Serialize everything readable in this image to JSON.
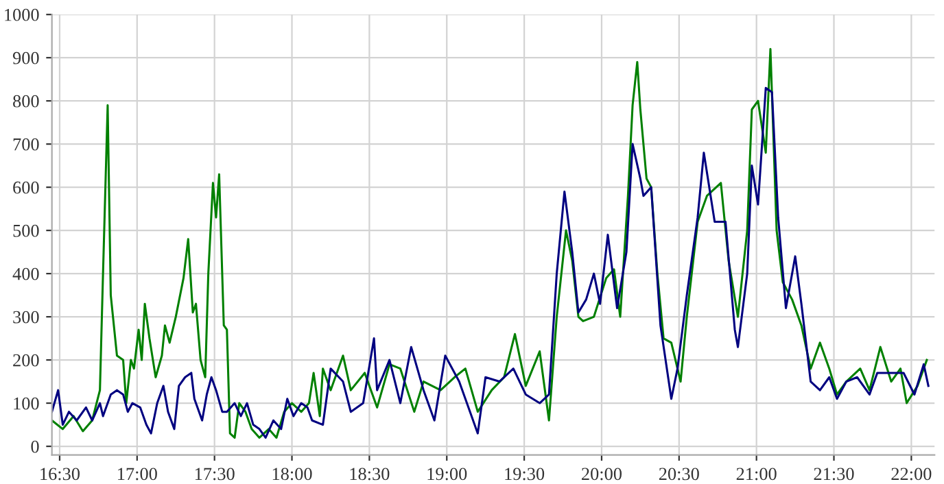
{
  "chart_data": {
    "type": "line",
    "xlim": [
      16.45,
      22.15
    ],
    "ylim": [
      -20,
      1000
    ],
    "xticks": [
      {
        "value": 16.5,
        "label": "16:30"
      },
      {
        "value": 17,
        "label": "17:00"
      },
      {
        "value": 17.5,
        "label": "17:30"
      },
      {
        "value": 18,
        "label": "18:00"
      },
      {
        "value": 18.5,
        "label": "18:30"
      },
      {
        "value": 19,
        "label": "19:00"
      },
      {
        "value": 19.5,
        "label": "19:30"
      },
      {
        "value": 20,
        "label": "20:00"
      },
      {
        "value": 20.5,
        "label": "20:30"
      },
      {
        "value": 21,
        "label": "21:00"
      },
      {
        "value": 21.5,
        "label": "21:30"
      },
      {
        "value": 22,
        "label": "22:00"
      }
    ],
    "yticks": [
      0,
      100,
      200,
      300,
      400,
      500,
      600,
      700,
      800,
      900,
      1000
    ],
    "grid": true,
    "marker": "none",
    "line_style": "solid",
    "series": [
      {
        "color": "#008000",
        "x": [
          16.45,
          16.52,
          16.59,
          16.65,
          16.71,
          16.76,
          16.78,
          16.81,
          16.83,
          16.87,
          16.91,
          16.93,
          16.96,
          16.98,
          17.01,
          17.03,
          17.05,
          17.08,
          17.12,
          17.16,
          17.18,
          17.21,
          17.25,
          17.3,
          17.33,
          17.36,
          17.38,
          17.41,
          17.44,
          17.46,
          17.49,
          17.51,
          17.53,
          17.56,
          17.58,
          17.6,
          17.63,
          17.66,
          17.7,
          17.74,
          17.79,
          17.85,
          17.9,
          17.95,
          18.0,
          18.06,
          18.11,
          18.14,
          18.18,
          18.2,
          18.25,
          18.33,
          18.38,
          18.47,
          18.55,
          18.63,
          18.7,
          18.79,
          18.85,
          18.96,
          19.05,
          19.12,
          19.2,
          19.29,
          19.37,
          19.44,
          19.51,
          19.6,
          19.66,
          19.71,
          19.77,
          19.81,
          19.85,
          19.88,
          19.95,
          20.03,
          20.08,
          20.12,
          20.17,
          20.2,
          20.23,
          20.25,
          20.29,
          20.32,
          20.36,
          20.4,
          20.45,
          20.51,
          20.55,
          20.62,
          20.68,
          20.77,
          20.82,
          20.88,
          20.94,
          20.97,
          21.01,
          21.06,
          21.09,
          21.13,
          21.17,
          21.23,
          21.29,
          21.35,
          21.41,
          21.47,
          21.52,
          21.58,
          21.67,
          21.73,
          21.8,
          21.87,
          21.93,
          21.97,
          22.04,
          22.1
        ],
        "values": [
          60,
          40,
          70,
          35,
          60,
          130,
          400,
          790,
          350,
          210,
          200,
          100,
          200,
          180,
          270,
          200,
          330,
          250,
          160,
          210,
          280,
          240,
          300,
          390,
          480,
          310,
          330,
          200,
          160,
          400,
          610,
          530,
          630,
          280,
          270,
          30,
          20,
          100,
          80,
          40,
          20,
          40,
          20,
          80,
          100,
          80,
          100,
          170,
          70,
          180,
          130,
          210,
          130,
          170,
          90,
          190,
          180,
          80,
          150,
          130,
          160,
          180,
          80,
          130,
          160,
          260,
          140,
          220,
          60,
          300,
          500,
          430,
          300,
          290,
          300,
          390,
          410,
          300,
          580,
          790,
          890,
          780,
          620,
          600,
          400,
          250,
          240,
          150,
          300,
          520,
          580,
          610,
          430,
          300,
          500,
          780,
          800,
          680,
          920,
          500,
          380,
          340,
          280,
          180,
          240,
          180,
          120,
          150,
          180,
          130,
          230,
          150,
          180,
          100,
          140,
          200
        ]
      },
      {
        "color": "#000080",
        "x": [
          16.45,
          16.49,
          16.52,
          16.56,
          16.61,
          16.67,
          16.71,
          16.76,
          16.78,
          16.83,
          16.87,
          16.91,
          16.94,
          16.97,
          17.02,
          17.06,
          17.09,
          17.13,
          17.17,
          17.2,
          17.24,
          17.27,
          17.31,
          17.35,
          17.37,
          17.42,
          17.45,
          17.48,
          17.51,
          17.55,
          17.58,
          17.63,
          17.67,
          17.71,
          17.75,
          17.79,
          17.83,
          17.88,
          17.93,
          17.97,
          18.01,
          18.06,
          18.1,
          18.13,
          18.2,
          18.25,
          18.33,
          18.38,
          18.46,
          18.53,
          18.55,
          18.63,
          18.7,
          18.77,
          18.85,
          18.92,
          18.99,
          19.08,
          19.2,
          19.25,
          19.34,
          19.43,
          19.51,
          19.6,
          19.66,
          19.71,
          19.76,
          19.81,
          19.85,
          19.9,
          19.95,
          19.99,
          20.04,
          20.1,
          20.16,
          20.2,
          20.25,
          20.27,
          20.32,
          20.38,
          20.45,
          20.49,
          20.55,
          20.62,
          20.66,
          20.73,
          20.8,
          20.86,
          20.88,
          20.94,
          20.97,
          21.01,
          21.06,
          21.1,
          21.14,
          21.19,
          21.25,
          21.29,
          21.35,
          21.41,
          21.47,
          21.52,
          21.58,
          21.65,
          21.73,
          21.78,
          21.87,
          21.95,
          22.02,
          22.08,
          22.11
        ],
        "values": [
          80,
          130,
          50,
          80,
          60,
          90,
          60,
          100,
          70,
          120,
          130,
          120,
          80,
          100,
          90,
          50,
          30,
          100,
          140,
          80,
          40,
          140,
          160,
          170,
          110,
          60,
          120,
          160,
          130,
          80,
          80,
          100,
          70,
          100,
          50,
          40,
          20,
          60,
          40,
          110,
          70,
          100,
          90,
          60,
          50,
          180,
          150,
          80,
          100,
          250,
          130,
          200,
          100,
          230,
          130,
          60,
          210,
          150,
          30,
          160,
          150,
          180,
          120,
          100,
          120,
          400,
          590,
          450,
          310,
          340,
          400,
          330,
          490,
          320,
          450,
          700,
          620,
          580,
          600,
          280,
          110,
          180,
          350,
          530,
          680,
          520,
          520,
          270,
          230,
          400,
          650,
          560,
          830,
          820,
          530,
          320,
          440,
          330,
          150,
          130,
          160,
          110,
          150,
          160,
          120,
          170,
          170,
          170,
          120,
          190,
          140
        ]
      }
    ]
  }
}
